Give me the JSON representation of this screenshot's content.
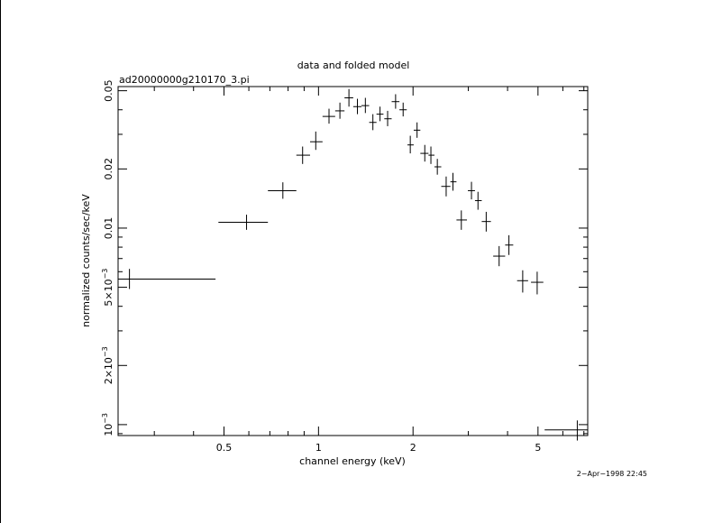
{
  "chart_data": {
    "type": "scatter",
    "title": "data and folded model",
    "subtitle": "ad20000000g210170_3.pi",
    "xlabel": "channel energy (keV)",
    "ylabel": "normalized counts/sec/keV",
    "x_scale": "log",
    "y_scale": "log",
    "xlim": [
      0.23,
      7.2
    ],
    "ylim": [
      0.00088,
      0.0525
    ],
    "x_ticks": [
      {
        "value": 0.5,
        "label": "0.5"
      },
      {
        "value": 1,
        "label": "1"
      },
      {
        "value": 2,
        "label": "2"
      },
      {
        "value": 5,
        "label": "5"
      }
    ],
    "y_ticks": [
      {
        "value": 0.001,
        "label": "10",
        "exp": "−3"
      },
      {
        "value": 0.002,
        "label": "2×10",
        "exp": "−3"
      },
      {
        "value": 0.005,
        "label": "5×10",
        "exp": "−3"
      },
      {
        "value": 0.01,
        "label": "0.01"
      },
      {
        "value": 0.02,
        "label": "0.02"
      },
      {
        "value": 0.05,
        "label": "0.05"
      }
    ],
    "points": [
      {
        "x": 0.25,
        "xlo": 0.23,
        "xhi": 0.47,
        "y": 0.0055,
        "ylo": 0.0049,
        "yhi": 0.0062
      },
      {
        "x": 0.59,
        "xlo": 0.48,
        "xhi": 0.69,
        "y": 0.0107,
        "ylo": 0.0098,
        "yhi": 0.0117
      },
      {
        "x": 0.77,
        "xlo": 0.69,
        "xhi": 0.85,
        "y": 0.0155,
        "ylo": 0.0141,
        "yhi": 0.0171
      },
      {
        "x": 0.89,
        "xlo": 0.85,
        "xhi": 0.94,
        "y": 0.0235,
        "ylo": 0.0212,
        "yhi": 0.026
      },
      {
        "x": 0.98,
        "xlo": 0.94,
        "xhi": 1.03,
        "y": 0.0275,
        "ylo": 0.025,
        "yhi": 0.031
      },
      {
        "x": 1.08,
        "xlo": 1.03,
        "xhi": 1.13,
        "y": 0.037,
        "ylo": 0.034,
        "yhi": 0.0405
      },
      {
        "x": 1.17,
        "xlo": 1.13,
        "xhi": 1.21,
        "y": 0.0395,
        "ylo": 0.036,
        "yhi": 0.0435
      },
      {
        "x": 1.25,
        "xlo": 1.21,
        "xhi": 1.29,
        "y": 0.046,
        "ylo": 0.0415,
        "yhi": 0.051
      },
      {
        "x": 1.33,
        "xlo": 1.29,
        "xhi": 1.37,
        "y": 0.0415,
        "ylo": 0.038,
        "yhi": 0.0455
      },
      {
        "x": 1.41,
        "xlo": 1.37,
        "xhi": 1.45,
        "y": 0.042,
        "ylo": 0.0385,
        "yhi": 0.046
      },
      {
        "x": 1.49,
        "xlo": 1.45,
        "xhi": 1.53,
        "y": 0.0345,
        "ylo": 0.0315,
        "yhi": 0.038
      },
      {
        "x": 1.57,
        "xlo": 1.53,
        "xhi": 1.61,
        "y": 0.038,
        "ylo": 0.035,
        "yhi": 0.0415
      },
      {
        "x": 1.66,
        "xlo": 1.62,
        "xhi": 1.71,
        "y": 0.036,
        "ylo": 0.033,
        "yhi": 0.0395
      },
      {
        "x": 1.76,
        "xlo": 1.71,
        "xhi": 1.81,
        "y": 0.044,
        "ylo": 0.0405,
        "yhi": 0.048
      },
      {
        "x": 1.86,
        "xlo": 1.81,
        "xhi": 1.91,
        "y": 0.04,
        "ylo": 0.037,
        "yhi": 0.0435
      },
      {
        "x": 1.96,
        "xlo": 1.92,
        "xhi": 2.01,
        "y": 0.0265,
        "ylo": 0.024,
        "yhi": 0.0295
      },
      {
        "x": 2.06,
        "xlo": 2.01,
        "xhi": 2.11,
        "y": 0.0315,
        "ylo": 0.0288,
        "yhi": 0.0345
      },
      {
        "x": 2.18,
        "xlo": 2.11,
        "xhi": 2.24,
        "y": 0.024,
        "ylo": 0.0218,
        "yhi": 0.0265
      },
      {
        "x": 2.28,
        "xlo": 2.24,
        "xhi": 2.34,
        "y": 0.0235,
        "ylo": 0.0212,
        "yhi": 0.026
      },
      {
        "x": 2.39,
        "xlo": 2.34,
        "xhi": 2.46,
        "y": 0.0205,
        "ylo": 0.0187,
        "yhi": 0.0225
      },
      {
        "x": 2.55,
        "xlo": 2.46,
        "xhi": 2.63,
        "y": 0.0163,
        "ylo": 0.0145,
        "yhi": 0.0183
      },
      {
        "x": 2.68,
        "xlo": 2.63,
        "xhi": 2.75,
        "y": 0.0172,
        "ylo": 0.0155,
        "yhi": 0.0191
      },
      {
        "x": 2.85,
        "xlo": 2.75,
        "xhi": 2.97,
        "y": 0.011,
        "ylo": 0.0098,
        "yhi": 0.0123
      },
      {
        "x": 3.07,
        "xlo": 2.99,
        "xhi": 3.15,
        "y": 0.0155,
        "ylo": 0.014,
        "yhi": 0.0172
      },
      {
        "x": 3.22,
        "xlo": 3.15,
        "xhi": 3.31,
        "y": 0.0138,
        "ylo": 0.0124,
        "yhi": 0.0153
      },
      {
        "x": 3.42,
        "xlo": 3.31,
        "xhi": 3.54,
        "y": 0.0108,
        "ylo": 0.0096,
        "yhi": 0.0121
      },
      {
        "x": 3.76,
        "xlo": 3.6,
        "xhi": 3.93,
        "y": 0.0072,
        "ylo": 0.0064,
        "yhi": 0.0081
      },
      {
        "x": 4.04,
        "xlo": 3.93,
        "xhi": 4.17,
        "y": 0.0082,
        "ylo": 0.0073,
        "yhi": 0.0092
      },
      {
        "x": 4.47,
        "xlo": 4.29,
        "xhi": 4.65,
        "y": 0.0054,
        "ylo": 0.0047,
        "yhi": 0.0061
      },
      {
        "x": 4.97,
        "xlo": 4.75,
        "xhi": 5.2,
        "y": 0.0053,
        "ylo": 0.0046,
        "yhi": 0.006
      },
      {
        "x": 6.67,
        "xlo": 5.25,
        "xhi": 7.2,
        "y": 0.00094,
        "ylo": 0.00083,
        "yhi": 0.00105
      }
    ]
  },
  "footer": {
    "timestamp": "2−Apr−1998 22:45"
  }
}
